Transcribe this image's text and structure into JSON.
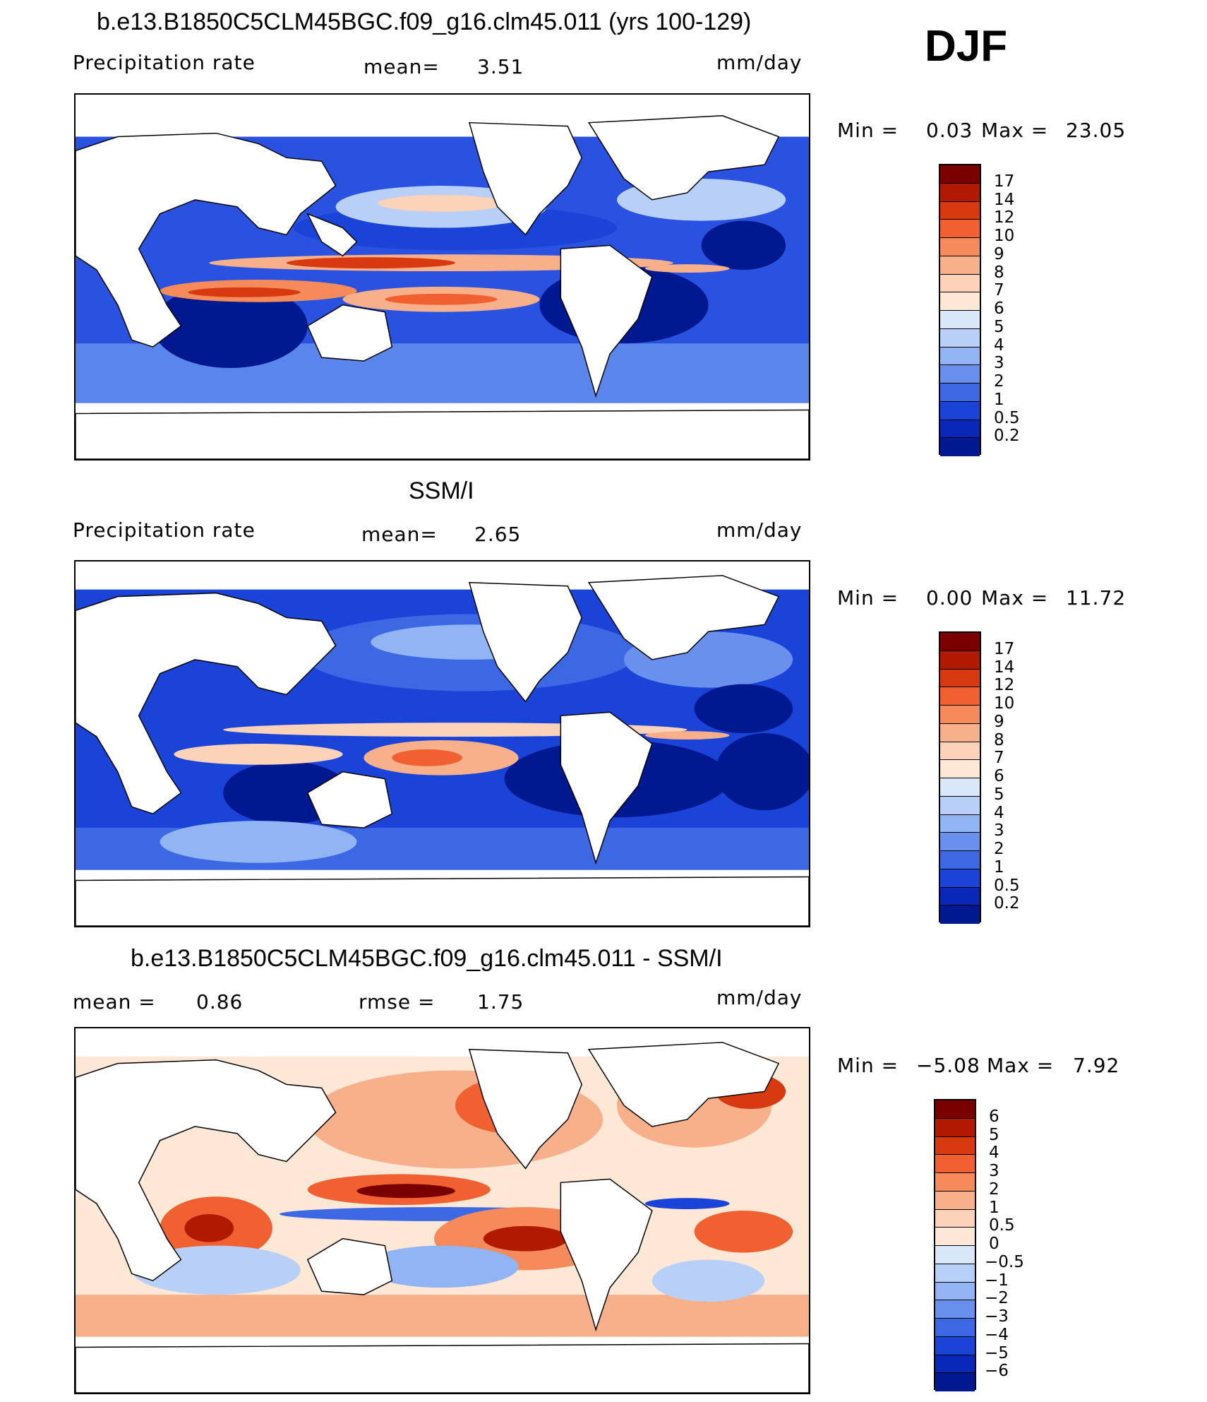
{
  "season": "DJF",
  "panels": [
    {
      "id": "model",
      "title": "b.e13.B1850C5CLM45BGC.f09_g16.clm45.011 (yrs 100-129)",
      "left_label": "Precipitation  rate",
      "mid_label": "mean=",
      "mid_value": "3.51",
      "units": "mm/day",
      "min_label": "Min  =",
      "min_value": "0.03",
      "max_label": "Max  =",
      "max_value": "23.05",
      "colorbar_labels": [
        "17",
        "14",
        "12",
        "10",
        "9",
        "8",
        "7",
        "6",
        "5",
        "4",
        "3",
        "2",
        "1",
        "0.5",
        "0.2"
      ]
    },
    {
      "id": "obs",
      "title": "SSM/I",
      "left_label": "Precipitation  rate",
      "mid_label": "mean=",
      "mid_value": "2.65",
      "units": "mm/day",
      "min_label": "Min  =",
      "min_value": "0.00",
      "max_label": "Max  =",
      "max_value": "11.72",
      "colorbar_labels": [
        "17",
        "14",
        "12",
        "10",
        "9",
        "8",
        "7",
        "6",
        "5",
        "4",
        "3",
        "2",
        "1",
        "0.5",
        "0.2"
      ]
    },
    {
      "id": "diff",
      "title": "b.e13.B1850C5CLM45BGC.f09_g16.clm45.011 - SSM/I",
      "left_label": "mean  =",
      "left_value": "0.86",
      "mid_label": "rmse  =",
      "mid_value": "1.75",
      "units": "mm/day",
      "min_label": "Min  =",
      "min_value": "−5.08",
      "max_label": "Max  =",
      "max_value": "7.92",
      "colorbar_labels": [
        "6",
        "5",
        "4",
        "3",
        "2",
        "1",
        "0.5",
        "0",
        "−0.5",
        "−1",
        "−2",
        "−3",
        "−4",
        "−5",
        "−6"
      ]
    }
  ],
  "colors": {
    "precip_scale": [
      "#7a0000",
      "#b01a00",
      "#d83a10",
      "#f06030",
      "#f58a5a",
      "#f8b08a",
      "#fcd2b8",
      "#fde8d6",
      "#d8e8f8",
      "#b8d0f8",
      "#90b4f4",
      "#6890ec",
      "#3c68e4",
      "#1a44d8",
      "#0a28b8",
      "#001890"
    ],
    "diff_scale": [
      "#7a0000",
      "#b01a00",
      "#d83a10",
      "#f06030",
      "#f58a5a",
      "#f8b08a",
      "#fcd2b8",
      "#fde8d6",
      "#d8e8f8",
      "#b8d0f8",
      "#90b4f4",
      "#6890ec",
      "#3c68e4",
      "#1a44d8",
      "#0a28b8",
      "#001890"
    ]
  }
}
